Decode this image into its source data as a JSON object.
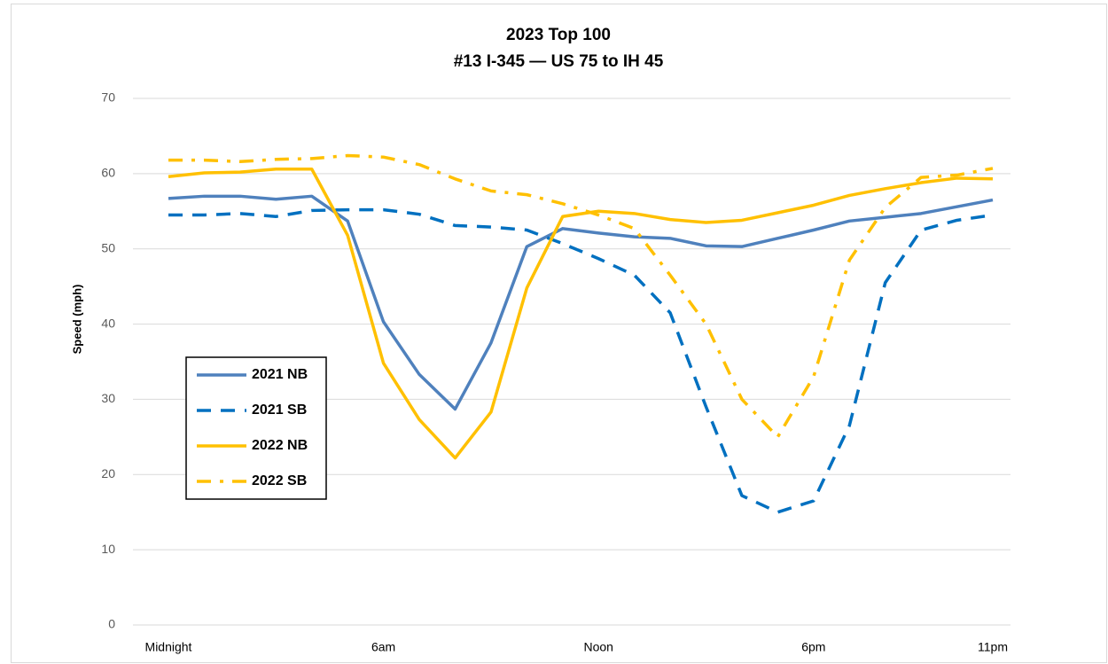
{
  "chart_data": {
    "type": "line",
    "title": [
      "2023 Top 100",
      "#13 I-345 —  US 75 to IH 45"
    ],
    "y_label": "Speed (mph)",
    "categories": [
      "Midnight",
      null,
      null,
      null,
      null,
      null,
      "6am",
      null,
      null,
      null,
      null,
      null,
      "Noon",
      null,
      null,
      null,
      null,
      null,
      "6pm",
      null,
      null,
      null,
      null,
      "11pm"
    ],
    "series": [
      {
        "name": "2021 NB",
        "color": "#4f81bd",
        "dash": "solid",
        "values": [
          56.7,
          57,
          57,
          56.6,
          57,
          53.7,
          40.3,
          33.3,
          28.7,
          37.5,
          50.3,
          52.7,
          52.1,
          51.6,
          51.4,
          50.4,
          50.3,
          51.4,
          52.5,
          53.7,
          54.2,
          54.7,
          55.6,
          56.5
        ]
      },
      {
        "name": "2021 SB",
        "color": "#0070c0",
        "dash": "dashed",
        "values": [
          54.5,
          54.5,
          54.7,
          54.3,
          55.1,
          55.2,
          55.2,
          54.6,
          53.1,
          52.9,
          52.5,
          50.7,
          48.7,
          46.5,
          41.5,
          29,
          17.2,
          15,
          16.5,
          26.5,
          45.5,
          52.5,
          53.8,
          54.5
        ]
      },
      {
        "name": "2022 NB",
        "color": "#ffc000",
        "dash": "solid",
        "values": [
          59.6,
          60.1,
          60.2,
          60.6,
          60.6,
          51.8,
          34.8,
          27.3,
          22.2,
          28.3,
          44.8,
          54.3,
          55,
          54.7,
          53.9,
          53.5,
          53.8,
          54.8,
          55.8,
          57.1,
          58,
          58.8,
          59.4,
          59.3
        ]
      },
      {
        "name": "2022 SB",
        "color": "#ffc000",
        "dash": "dashdot",
        "values": [
          61.8,
          61.8,
          61.6,
          61.9,
          62,
          62.4,
          62.2,
          61.2,
          59.3,
          57.7,
          57.2,
          56,
          54.5,
          52.7,
          46.5,
          40,
          30,
          25,
          33,
          48.5,
          55.5,
          59.5,
          59.8,
          60.7
        ]
      }
    ],
    "ylim": [
      0,
      70
    ],
    "yticks": [
      0,
      10,
      20,
      30,
      40,
      50,
      60,
      70
    ],
    "grid": true,
    "legend": "lower left"
  }
}
